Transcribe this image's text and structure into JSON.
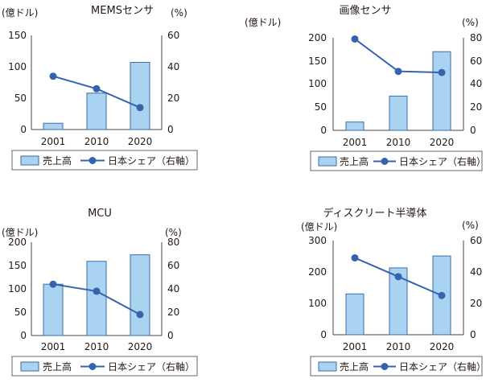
{
  "colors": {
    "bar_fill": "#a9d3f1",
    "bar_stroke": "#3a6ea5",
    "line": "#3563ae",
    "axis": "#444444"
  },
  "chart_data": [
    {
      "type": "bar+line",
      "title": "MEMSセンサ",
      "ylabel_left": "(億ドル)",
      "ylabel_right": "(%)",
      "categories": [
        "2001",
        "2010",
        "2020"
      ],
      "ylim_left": [
        0,
        150
      ],
      "yticks_left": [
        "0",
        "50",
        "100",
        "150"
      ],
      "ylim_right": [
        0,
        60
      ],
      "yticks_right": [
        "0",
        "20",
        "40",
        "60"
      ],
      "series": [
        {
          "name": "売上高",
          "type": "bar",
          "axis": "left",
          "values": [
            10,
            58,
            107
          ]
        },
        {
          "name": "日本シェア（右軸）",
          "type": "line",
          "axis": "right",
          "values": [
            34,
            26,
            14
          ]
        }
      ]
    },
    {
      "type": "bar+line",
      "title": "画像センサ",
      "ylabel_left": "(億ドル)",
      "ylabel_right": "(%)",
      "categories": [
        "2001",
        "2010",
        "2020"
      ],
      "ylim_left": [
        0,
        200
      ],
      "yticks_left": [
        "0",
        "50",
        "100",
        "150",
        "200"
      ],
      "ylim_right": [
        0,
        80
      ],
      "yticks_right": [
        "0",
        "20",
        "40",
        "60",
        "80"
      ],
      "series": [
        {
          "name": "売上高",
          "type": "bar",
          "axis": "left",
          "values": [
            18,
            74,
            170
          ]
        },
        {
          "name": "日本シェア（右軸）",
          "type": "line",
          "axis": "right",
          "values": [
            79,
            51,
            50
          ]
        }
      ]
    },
    {
      "type": "bar+line",
      "title": "MCU",
      "ylabel_left": "(億ドル)",
      "ylabel_right": "(%)",
      "categories": [
        "2001",
        "2010",
        "2020"
      ],
      "ylim_left": [
        0,
        200
      ],
      "yticks_left": [
        "0",
        "50",
        "100",
        "150",
        "200"
      ],
      "ylim_right": [
        0,
        80
      ],
      "yticks_right": [
        "0",
        "20",
        "40",
        "60",
        "80"
      ],
      "series": [
        {
          "name": "売上高",
          "type": "bar",
          "axis": "left",
          "values": [
            110,
            159,
            173
          ]
        },
        {
          "name": "日本シェア（右軸）",
          "type": "line",
          "axis": "right",
          "values": [
            44,
            38,
            18
          ]
        }
      ]
    },
    {
      "type": "bar+line",
      "title": "ディスクリート半導体",
      "ylabel_left": "(億ドル)",
      "ylabel_right": "(%)",
      "categories": [
        "2001",
        "2010",
        "2020"
      ],
      "ylim_left": [
        0,
        300
      ],
      "yticks_left": [
        "0",
        "100",
        "200",
        "300"
      ],
      "ylim_right": [
        0,
        60
      ],
      "yticks_right": [
        "0",
        "20",
        "40",
        "60"
      ],
      "series": [
        {
          "name": "売上高",
          "type": "bar",
          "axis": "left",
          "values": [
            130,
            213,
            251
          ]
        },
        {
          "name": "日本シェア（右軸）",
          "type": "line",
          "axis": "right",
          "values": [
            49,
            37,
            25
          ]
        }
      ]
    }
  ]
}
